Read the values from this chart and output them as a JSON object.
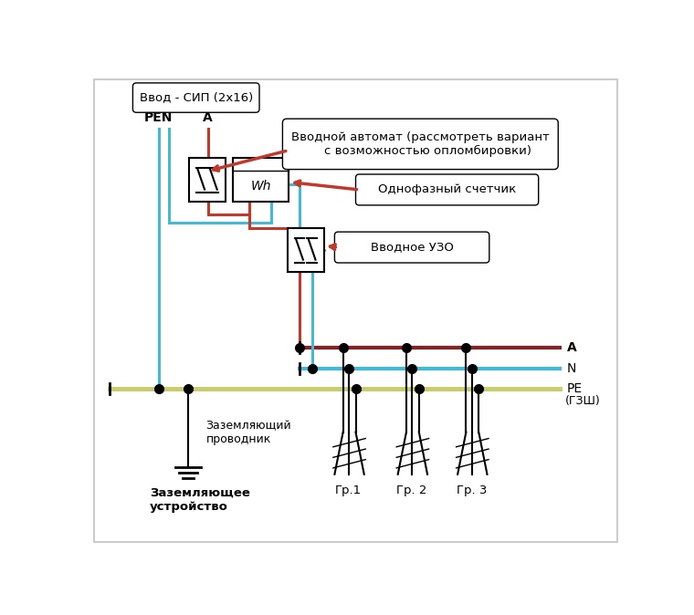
{
  "title": "Ввод - СИП (2x16)",
  "bg_color": "#ffffff",
  "pen_label": "PEN",
  "a_label": "A",
  "n_label": "N",
  "pe_label": "PE",
  "gzsh_label": "(ГЗШ)",
  "wh_label": "Wh",
  "label_avtomat": "Вводной автомат (рассмотреть вариант\n    с возможностью опломбировки)",
  "label_schetik": "Однофазный счетчик",
  "label_uzo": "Вводное УЗО",
  "label_zazeml_provod": "Заземляющий\nпроводник",
  "label_zazeml_ustr": "Заземляющее\nустройство",
  "gr_labels": [
    "Гр.1",
    "Гр. 2",
    "Гр. 3"
  ],
  "color_blue": "#45b8d4",
  "color_red": "#c0392b",
  "color_dark_red": "#8b2020",
  "color_pe_yellow": "#c8cc6a",
  "color_black": "#000000",
  "color_white": "#ffffff",
  "color_border": "#cccccc"
}
